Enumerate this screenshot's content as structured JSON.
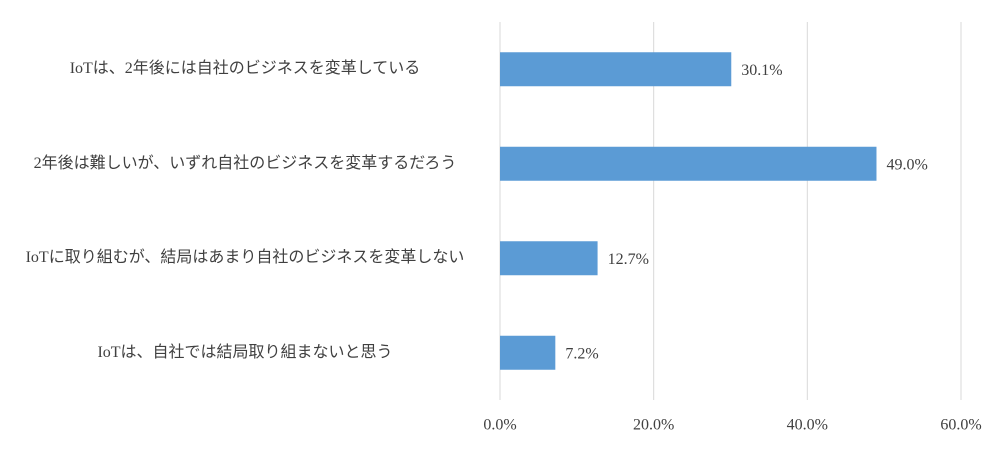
{
  "chart_data": {
    "type": "bar",
    "orientation": "horizontal",
    "categories": [
      "IoTは、2年後には自社のビジネスを変革している",
      "2年後は難しいが、いずれ自社のビジネスを変革するだろう",
      "IoTに取り組むが、結局はあまり自社のビジネスを変革しない",
      "IoTは、自社では結局取り組まないと思う"
    ],
    "values": [
      30.1,
      49.0,
      12.7,
      7.2
    ],
    "value_labels": [
      "30.1%",
      "49.0%",
      "12.7%",
      "7.2%"
    ],
    "color": "#5b9bd5",
    "xlim": [
      0,
      60
    ],
    "xticks": [
      {
        "value": 0,
        "label": "0.0%"
      },
      {
        "value": 20,
        "label": "20.0%"
      },
      {
        "value": 40,
        "label": "40.0%"
      },
      {
        "value": 60,
        "label": "60.0%"
      }
    ],
    "grid": true
  }
}
